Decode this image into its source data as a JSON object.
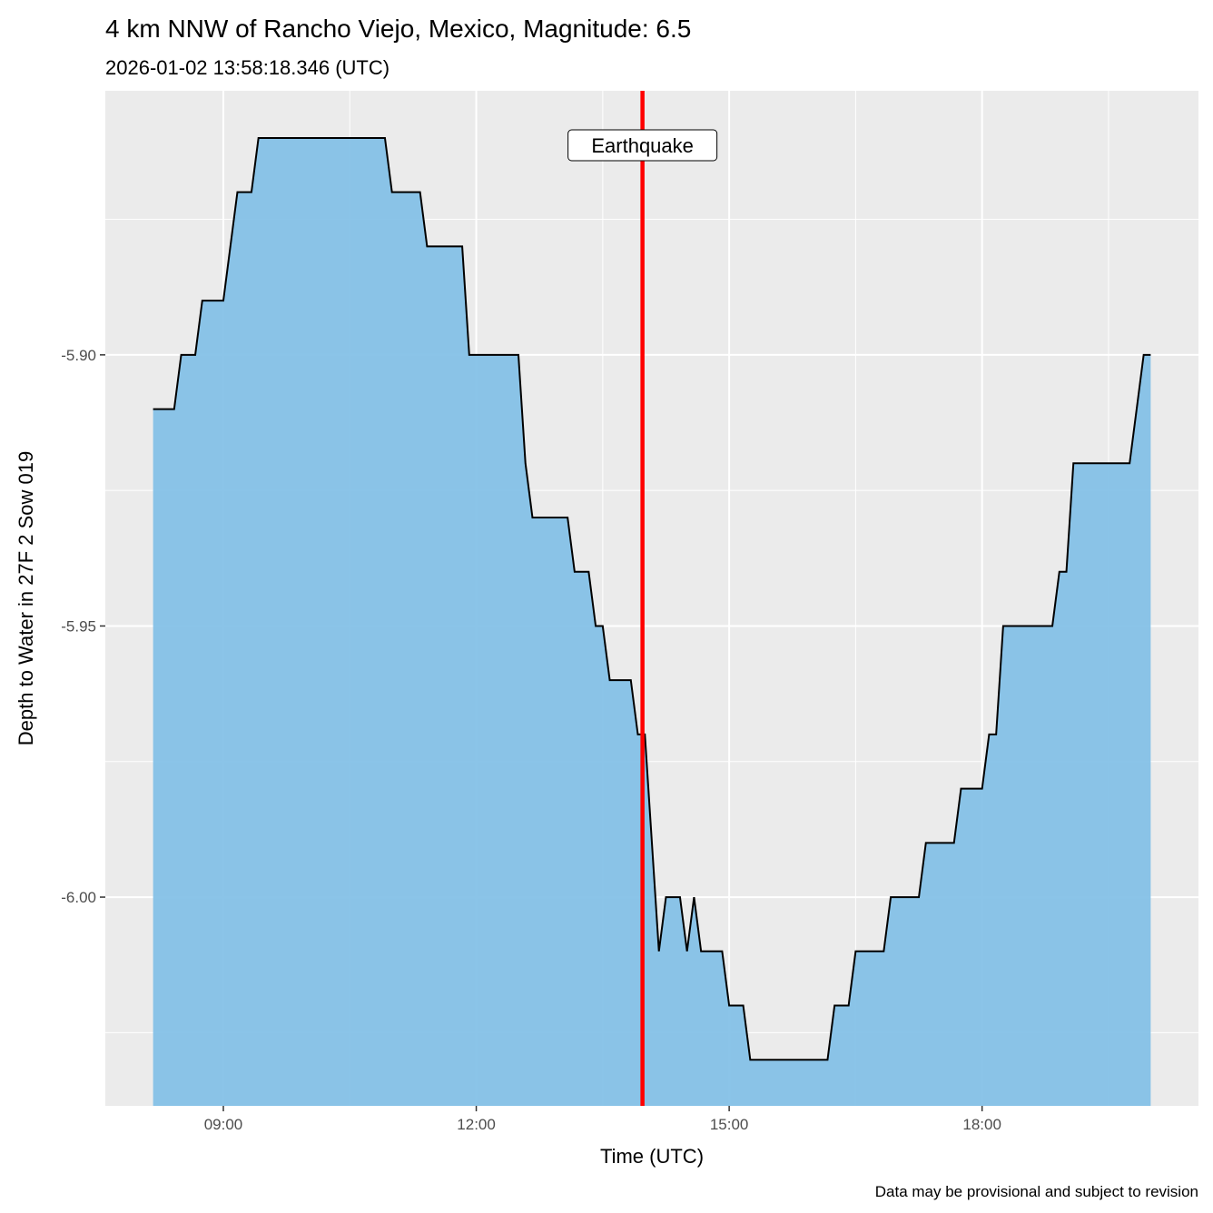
{
  "chart_data": {
    "type": "area",
    "title": "4 km NNW of Rancho Viejo, Mexico, Magnitude: 6.5",
    "subtitle": "2026-01-02 13:58:18.346 (UTC)",
    "xlabel": "Time (UTC)",
    "ylabel": "Depth to Water in 27F 2 Sow 019",
    "caption": "Data may be provisional and subject to revision",
    "xlim": [
      "07:36",
      "20:34"
    ],
    "ylim": [
      -6.0385,
      -5.8513
    ],
    "x_ticks": [
      "09:00",
      "12:00",
      "15:00",
      "18:00"
    ],
    "y_ticks": [
      -5.9,
      -5.95,
      -6.0
    ],
    "y_tick_labels": [
      "-5.90",
      "-5.95",
      "-6.00"
    ],
    "grid": true,
    "fill_color": "#85C1E7",
    "line_color": "#000000",
    "event": {
      "label": "Earthquake",
      "time": "13:58:18",
      "color": "#FF0000"
    },
    "x": [
      "08:10",
      "08:25",
      "08:30",
      "08:40",
      "08:45",
      "09:00",
      "09:10",
      "09:20",
      "09:25",
      "10:55",
      "11:00",
      "11:20",
      "11:25",
      "11:50",
      "11:55",
      "12:30",
      "12:35",
      "12:40",
      "13:05",
      "13:10",
      "13:20",
      "13:25",
      "13:30",
      "13:35",
      "13:50",
      "13:55",
      "14:00",
      "14:10",
      "14:15",
      "14:25",
      "14:30",
      "14:35",
      "14:40",
      "14:55",
      "15:00",
      "15:10",
      "15:15",
      "16:10",
      "16:15",
      "16:25",
      "16:30",
      "16:50",
      "16:55",
      "17:15",
      "17:20",
      "17:40",
      "17:45",
      "18:00",
      "18:05",
      "18:10",
      "18:15",
      "18:50",
      "18:55",
      "19:00",
      "19:05",
      "19:45",
      "19:55",
      "20:00"
    ],
    "y": [
      -5.91,
      -5.91,
      -5.9,
      -5.9,
      -5.89,
      -5.89,
      -5.87,
      -5.87,
      -5.86,
      -5.86,
      -5.87,
      -5.87,
      -5.88,
      -5.88,
      -5.9,
      -5.9,
      -5.92,
      -5.93,
      -5.93,
      -5.94,
      -5.94,
      -5.95,
      -5.95,
      -5.96,
      -5.96,
      -5.97,
      -5.97,
      -6.01,
      -6.0,
      -6.0,
      -6.01,
      -6.0,
      -6.01,
      -6.01,
      -6.02,
      -6.02,
      -6.03,
      -6.03,
      -6.02,
      -6.02,
      -6.01,
      -6.01,
      -6.0,
      -6.0,
      -5.99,
      -5.99,
      -5.98,
      -5.98,
      -5.97,
      -5.97,
      -5.95,
      -5.95,
      -5.94,
      -5.94,
      -5.92,
      -5.92,
      -5.9,
      -5.9
    ]
  }
}
